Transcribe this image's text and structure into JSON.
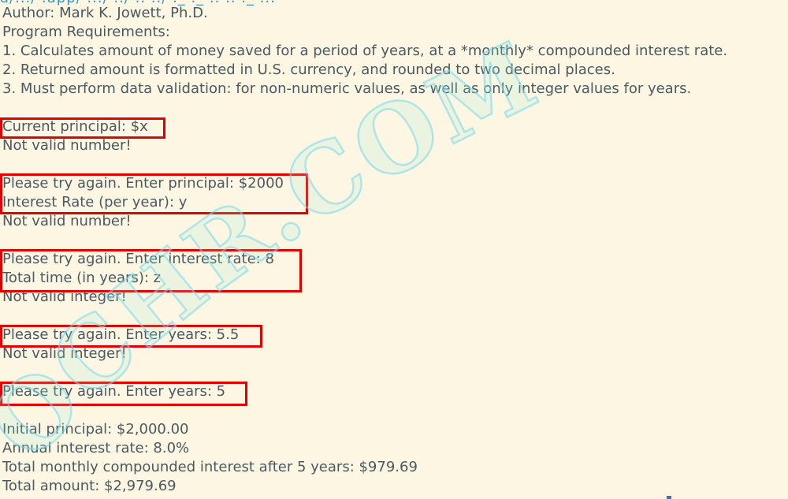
{
  "header": {
    "clipped_top_text": "a/.../ .app/ .../ ../ .. ../ ._ ._ .. .. ._ ..."
  },
  "requirements": {
    "author": "Author: Mark K. Jowett, Ph.D.",
    "title": "Program Requirements:",
    "items": [
      "1. Calculates amount of money saved for a period of years, at a *monthly* compounded interest rate.",
      "2. Returned amount is formatted in U.S. currency, and rounded to two decimal places.",
      "3. Must perform data validation: for non-numeric values, as well as only integer values for years."
    ]
  },
  "session": {
    "principal_prompt": "Current principal: $x",
    "error_number_1": "Not valid number!",
    "retry_principal": "Please try again. Enter principal: $2000",
    "rate_prompt": "Interest Rate (per year): y",
    "error_number_2": "Not valid number!",
    "retry_rate": "Please try again. Enter interest rate: 8",
    "time_prompt": "Total time (in years): z",
    "error_integer_1": "Not valid integer!",
    "retry_years_1": "Please try again. Enter years: 5.5",
    "error_integer_2": "Not valid integer!",
    "retry_years_2": "Please try again. Enter years: 5"
  },
  "results": {
    "initial_principal": "Initial principal: $2,000.00",
    "annual_rate": "Annual interest rate: 8.0%",
    "total_interest": "Total monthly compounded interest after 5 years: $979.69",
    "total_amount": "Total amount: $2,979.69"
  },
  "watermark": {
    "text": "OCHR.COM"
  },
  "colors": {
    "background": "#fdf6e3",
    "text": "#4a5a60",
    "highlight_box": "#e00000",
    "watermark": "#96eed2"
  }
}
